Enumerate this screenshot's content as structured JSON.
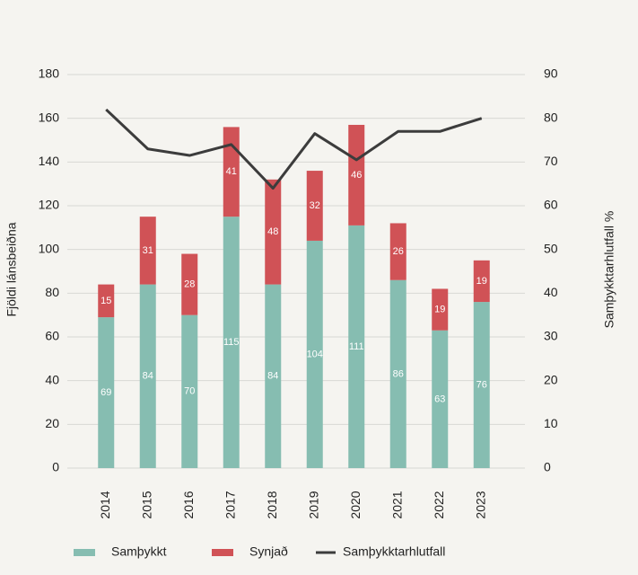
{
  "chart_data": {
    "type": "bar",
    "categories": [
      "2014",
      "2015",
      "2016",
      "2017",
      "2018",
      "2019",
      "2020",
      "2021",
      "2022",
      "2023"
    ],
    "series": [
      {
        "name": "Samþykkt",
        "color": "#86bdb1",
        "values": [
          69,
          84,
          70,
          115,
          84,
          104,
          111,
          86,
          63,
          76
        ]
      },
      {
        "name": "Synjað",
        "color": "#d05256",
        "values": [
          15,
          31,
          28,
          41,
          48,
          32,
          46,
          26,
          19,
          19
        ]
      },
      {
        "name": "Samþykktarhlutfall",
        "color": "#3c3c3c",
        "type": "line",
        "axis": "y2",
        "values": [
          82,
          73,
          71.5,
          74,
          64,
          76.5,
          70.5,
          77,
          77,
          80
        ]
      }
    ],
    "ylabel": "Fjöldi lánsbeiðna",
    "y2label": "Samþykktarhlutfall %",
    "ylim": [
      0,
      180
    ],
    "yticks": [
      0,
      20,
      40,
      60,
      80,
      100,
      120,
      140,
      160,
      180
    ],
    "y2lim": [
      0,
      90
    ],
    "y2ticks": [
      0,
      10,
      20,
      30,
      40,
      50,
      60,
      70,
      80,
      90
    ],
    "grid": true,
    "stacked": true,
    "legend": "bottom"
  }
}
